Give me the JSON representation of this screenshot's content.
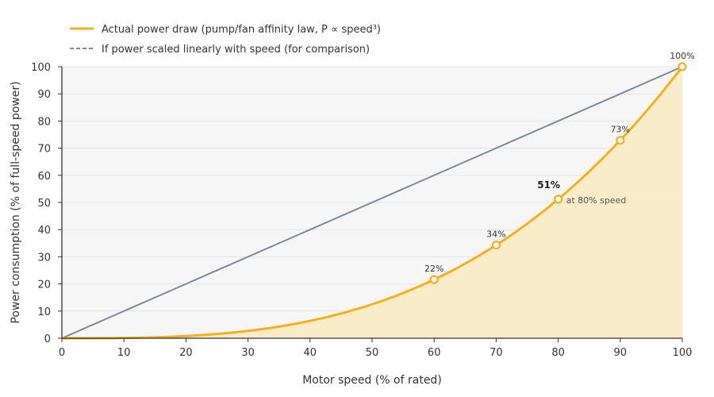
{
  "chart_data": {
    "type": "line",
    "xlabel": "Motor speed (% of rated)",
    "ylabel": "Power consumption (% of full-speed power)",
    "xlim": [
      0,
      100
    ],
    "ylim": [
      0,
      100
    ],
    "x_ticks": [
      0,
      10,
      20,
      30,
      40,
      50,
      60,
      70,
      80,
      90,
      100
    ],
    "y_ticks": [
      0,
      10,
      20,
      30,
      40,
      50,
      60,
      70,
      80,
      90,
      100
    ],
    "grid": "horizontal",
    "legend_position": "top-left",
    "series": [
      {
        "name": "Actual power draw (pump/fan affinity law, P ∝ speed³)",
        "style": "solid",
        "fill": "area",
        "x": [
          0,
          10,
          20,
          30,
          40,
          50,
          60,
          70,
          80,
          90,
          100
        ],
        "y": [
          0,
          0.1,
          0.8,
          2.7,
          6.4,
          12.5,
          21.6,
          34.3,
          51.2,
          72.9,
          100
        ],
        "highlighted_points": [
          {
            "x": 60,
            "y": 21.6,
            "label": "22%"
          },
          {
            "x": 70,
            "y": 34.3,
            "label": "34%"
          },
          {
            "x": 80,
            "y": 51.2,
            "label": "51%",
            "note": "at 80% speed"
          },
          {
            "x": 90,
            "y": 72.9,
            "label": "73%"
          },
          {
            "x": 100,
            "y": 100,
            "label": "100%"
          }
        ]
      },
      {
        "name": "If power scaled linearly with speed (for comparison)",
        "style": "solid",
        "x": [
          0,
          100
        ],
        "y": [
          0,
          100
        ]
      }
    ]
  },
  "colors": {
    "curve": "#f2b01e",
    "area_fill": "#faebc4",
    "linear": "#808a94",
    "plot_background": "#f6f6f6",
    "grid": "#e4e4e4",
    "axis": "#333333",
    "text": "#333333",
    "marker_fill": "#ffffff"
  }
}
